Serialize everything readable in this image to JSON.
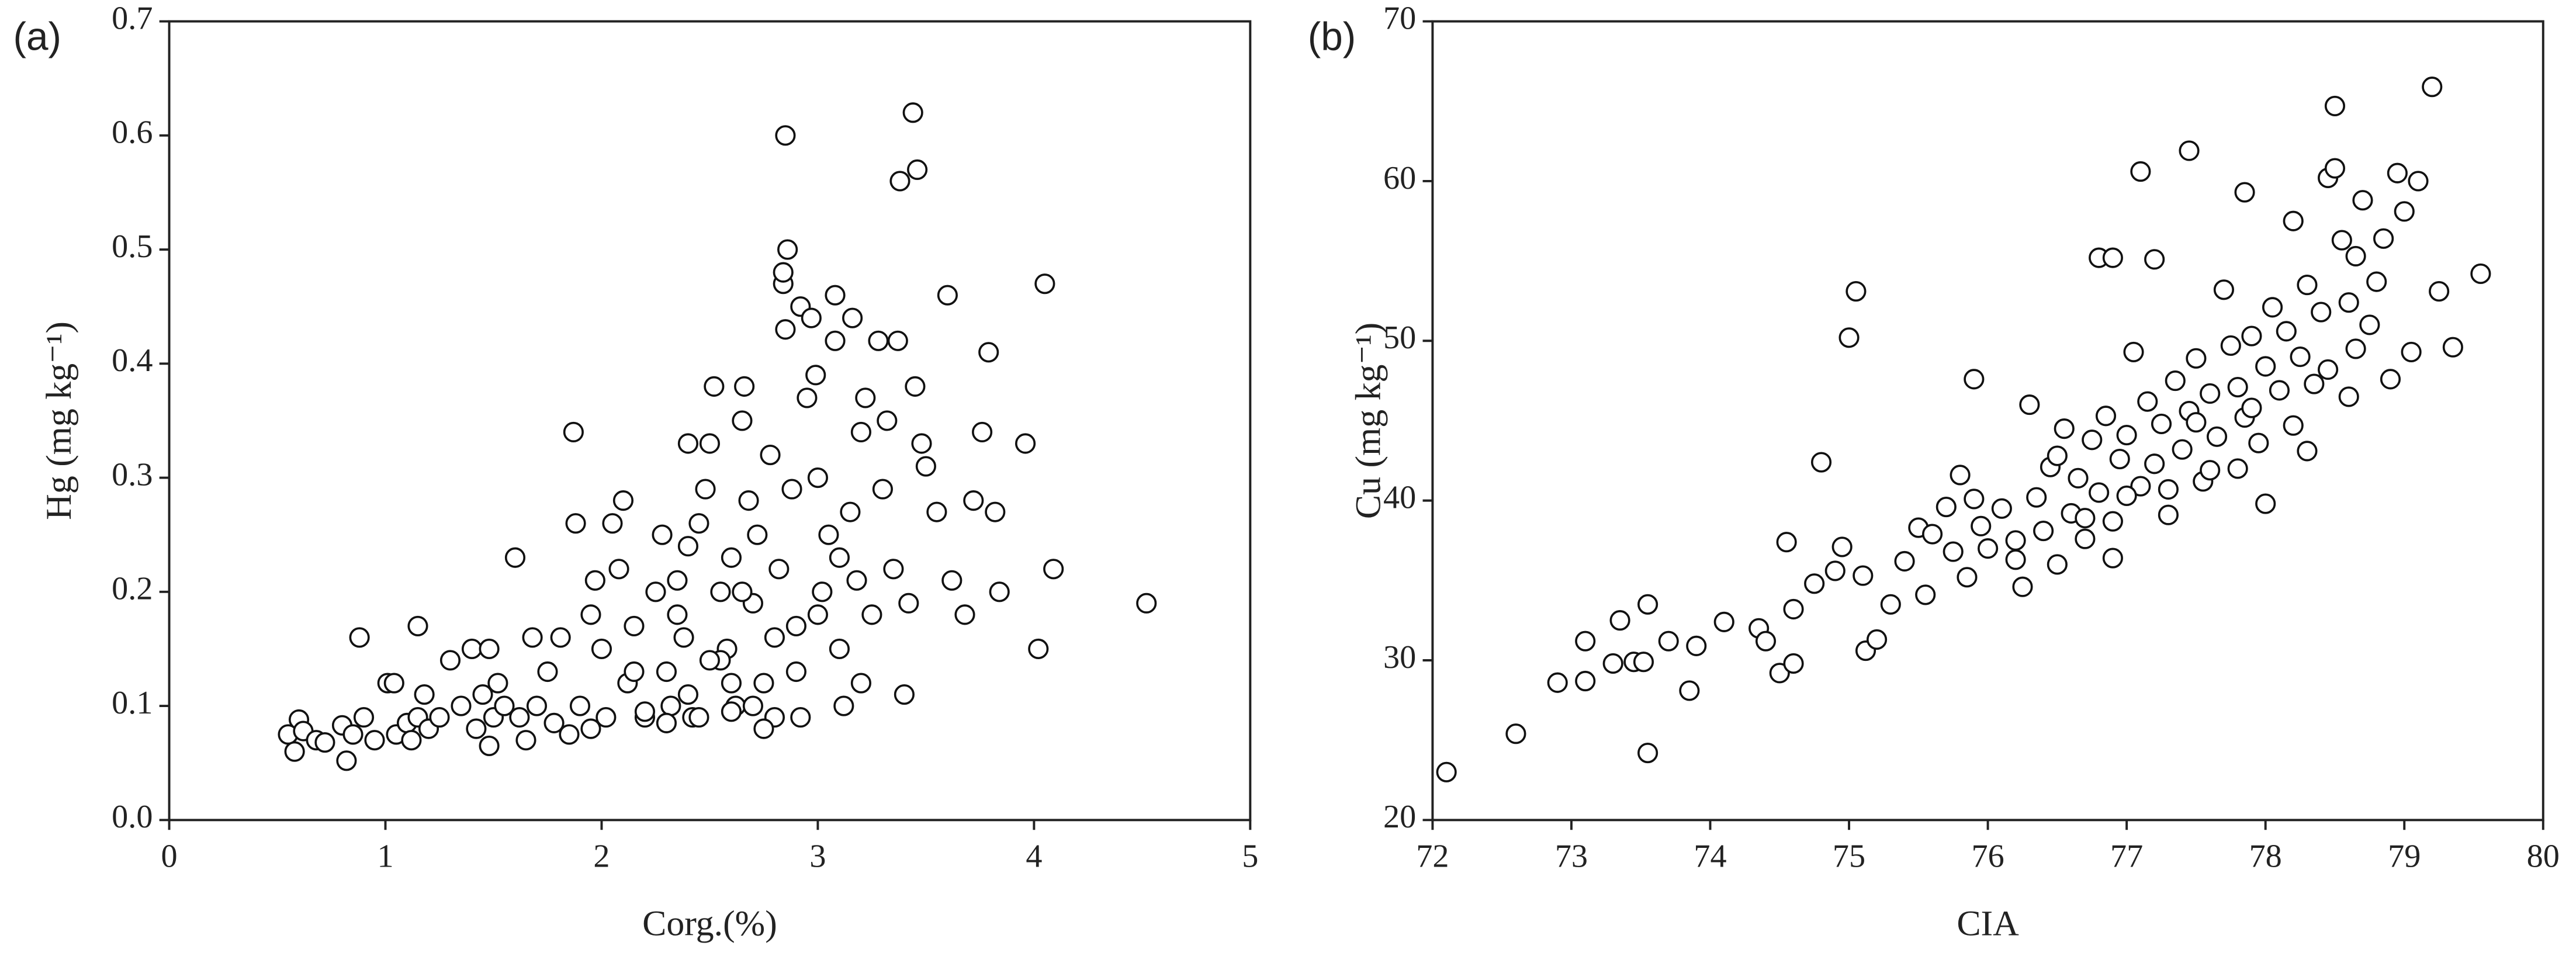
{
  "chart_data": [
    {
      "type": "scatter",
      "panel_label": "(a)",
      "x_label": "Corg.(%)",
      "y_label": "Hg (mg kg⁻¹)",
      "color": "#111111",
      "xlim": [
        0,
        5
      ],
      "ylim": [
        0,
        0.7
      ],
      "xticks": [
        0,
        1,
        2,
        3,
        4,
        5
      ],
      "yticks": [
        {
          "value": 0,
          "label": "0.0"
        },
        0.1,
        0.2,
        0.3,
        0.4,
        0.5,
        0.6,
        0.7
      ],
      "x": [
        0.55,
        0.58,
        0.6,
        0.62,
        0.68,
        0.72,
        0.8,
        0.82,
        0.85,
        0.88,
        0.9,
        0.95,
        1.01,
        1.04,
        1.05,
        1.1,
        1.12,
        1.15,
        1.15,
        1.18,
        1.2,
        1.25,
        1.3,
        1.35,
        1.4,
        1.42,
        1.45,
        1.48,
        1.48,
        1.5,
        1.52,
        1.55,
        1.6,
        1.62,
        1.65,
        1.68,
        1.7,
        1.75,
        1.78,
        1.81,
        1.85,
        1.87,
        1.88,
        1.9,
        1.95,
        1.97,
        2.0,
        2.02,
        2.05,
        2.08,
        2.1,
        2.12,
        2.15,
        2.2,
        2.25,
        2.28,
        2.3,
        2.32,
        2.35,
        2.38,
        2.4,
        2.42,
        2.45,
        2.48,
        2.5,
        2.52,
        2.55,
        2.58,
        2.6,
        2.62,
        2.65,
        2.66,
        2.68,
        2.7,
        2.72,
        2.75,
        2.78,
        2.8,
        2.82,
        2.84,
        2.84,
        2.85,
        2.85,
        2.86,
        2.88,
        2.9,
        2.92,
        2.92,
        2.95,
        2.97,
        2.99,
        3.0,
        3.02,
        3.05,
        3.08,
        3.08,
        3.1,
        3.12,
        3.15,
        3.16,
        3.18,
        3.2,
        3.22,
        3.25,
        3.28,
        3.3,
        3.32,
        3.35,
        3.37,
        3.38,
        3.4,
        3.42,
        3.44,
        3.45,
        3.46,
        3.48,
        3.5,
        3.55,
        3.6,
        3.62,
        3.68,
        3.72,
        3.76,
        3.79,
        3.82,
        3.84,
        3.96,
        4.02,
        4.05,
        4.09,
        4.52,
        2.3,
        2.45,
        2.6,
        2.7,
        2.8,
        2.55,
        2.4,
        2.2,
        1.95,
        2.75,
        2.15,
        2.35,
        2.5,
        2.65,
        3.0,
        3.1,
        3.2,
        2.9,
        2.6,
        2.4
      ],
      "values": [
        0.075,
        0.06,
        0.088,
        0.078,
        0.07,
        0.068,
        0.083,
        0.052,
        0.075,
        0.16,
        0.09,
        0.07,
        0.12,
        0.12,
        0.075,
        0.085,
        0.07,
        0.17,
        0.09,
        0.11,
        0.08,
        0.09,
        0.14,
        0.1,
        0.15,
        0.08,
        0.11,
        0.15,
        0.065,
        0.09,
        0.12,
        0.1,
        0.23,
        0.09,
        0.07,
        0.16,
        0.1,
        0.13,
        0.085,
        0.16,
        0.075,
        0.34,
        0.26,
        0.1,
        0.18,
        0.21,
        0.15,
        0.09,
        0.26,
        0.22,
        0.28,
        0.12,
        0.17,
        0.09,
        0.2,
        0.25,
        0.13,
        0.1,
        0.21,
        0.16,
        0.33,
        0.09,
        0.26,
        0.29,
        0.33,
        0.38,
        0.2,
        0.15,
        0.23,
        0.1,
        0.35,
        0.38,
        0.28,
        0.19,
        0.25,
        0.12,
        0.32,
        0.16,
        0.22,
        0.47,
        0.48,
        0.43,
        0.6,
        0.5,
        0.29,
        0.13,
        0.45,
        0.09,
        0.37,
        0.44,
        0.39,
        0.3,
        0.2,
        0.25,
        0.46,
        0.42,
        0.15,
        0.1,
        0.27,
        0.44,
        0.21,
        0.34,
        0.37,
        0.18,
        0.42,
        0.29,
        0.35,
        0.22,
        0.42,
        0.56,
        0.11,
        0.19,
        0.62,
        0.38,
        0.57,
        0.33,
        0.31,
        0.27,
        0.46,
        0.21,
        0.18,
        0.28,
        0.34,
        0.41,
        0.27,
        0.2,
        0.33,
        0.15,
        0.47,
        0.22,
        0.19,
        0.085,
        0.09,
        0.095,
        0.1,
        0.09,
        0.14,
        0.11,
        0.095,
        0.08,
        0.08,
        0.13,
        0.18,
        0.14,
        0.2,
        0.18,
        0.23,
        0.12,
        0.17,
        0.12,
        0.24
      ]
    },
    {
      "type": "scatter",
      "panel_label": "(b)",
      "x_label": "CIA",
      "y_label": "Cu (mg kg⁻¹)",
      "color": "#111111",
      "xlim": [
        72,
        80
      ],
      "ylim": [
        20,
        70
      ],
      "xticks": [
        72,
        73,
        74,
        75,
        76,
        77,
        78,
        79,
        80
      ],
      "yticks": [
        20,
        30,
        40,
        50,
        60,
        70
      ],
      "x": [
        72.1,
        72.6,
        72.9,
        73.1,
        73.1,
        73.3,
        73.35,
        73.45,
        73.52,
        73.55,
        73.55,
        73.7,
        73.85,
        73.9,
        74.1,
        74.35,
        74.4,
        74.5,
        74.55,
        74.6,
        74.6,
        74.75,
        74.8,
        74.9,
        74.95,
        75.0,
        75.05,
        75.1,
        75.12,
        75.2,
        75.3,
        75.4,
        75.5,
        75.55,
        75.6,
        75.7,
        75.75,
        75.8,
        75.85,
        75.9,
        75.95,
        76.0,
        76.1,
        76.2,
        76.25,
        76.3,
        76.35,
        76.4,
        76.45,
        76.5,
        76.55,
        76.6,
        76.65,
        76.7,
        76.75,
        76.8,
        76.8,
        76.85,
        76.9,
        76.9,
        76.95,
        77.0,
        77.05,
        77.1,
        77.1,
        77.15,
        77.2,
        77.2,
        77.25,
        77.3,
        77.35,
        77.4,
        77.45,
        77.45,
        77.5,
        77.55,
        77.6,
        77.65,
        77.7,
        77.75,
        77.8,
        77.85,
        77.85,
        77.9,
        77.95,
        78.0,
        78.05,
        78.1,
        78.15,
        78.2,
        78.2,
        78.25,
        78.3,
        78.35,
        78.4,
        78.45,
        78.45,
        78.5,
        78.5,
        78.55,
        78.6,
        78.65,
        78.65,
        78.7,
        78.75,
        78.8,
        78.85,
        78.9,
        78.95,
        79.0,
        79.05,
        79.1,
        79.2,
        79.25,
        79.35,
        79.55,
        75.9,
        76.5,
        77.0,
        77.5,
        78.0,
        77.8,
        76.2,
        76.7,
        77.3,
        77.9,
        78.3,
        78.6,
        77.6,
        76.9
      ],
      "values": [
        23,
        25.4,
        28.6,
        31.2,
        28.7,
        29.8,
        32.5,
        29.9,
        29.9,
        24.2,
        33.5,
        31.2,
        28.1,
        30.9,
        32.4,
        32.0,
        31.2,
        29.2,
        37.4,
        29.8,
        33.2,
        34.8,
        42.4,
        35.6,
        37.1,
        50.2,
        53.1,
        35.3,
        30.6,
        31.3,
        33.5,
        36.2,
        38.3,
        34.1,
        37.9,
        39.6,
        36.8,
        41.6,
        35.2,
        40.1,
        38.4,
        37.0,
        39.5,
        36.3,
        34.6,
        46.0,
        40.2,
        38.1,
        42.1,
        36.0,
        44.5,
        39.2,
        41.4,
        37.6,
        43.8,
        55.2,
        40.5,
        45.3,
        55.2,
        38.7,
        42.6,
        44.1,
        49.3,
        60.6,
        40.9,
        46.2,
        55.1,
        42.3,
        44.8,
        39.1,
        47.5,
        43.2,
        61.9,
        45.6,
        48.9,
        41.2,
        46.7,
        44.0,
        53.2,
        49.7,
        47.1,
        59.3,
        45.2,
        50.3,
        43.6,
        48.4,
        52.1,
        46.9,
        50.6,
        57.5,
        44.7,
        49.0,
        53.5,
        47.3,
        51.8,
        60.2,
        48.2,
        64.7,
        60.8,
        56.3,
        52.4,
        55.3,
        49.5,
        58.8,
        51.0,
        53.7,
        56.4,
        47.6,
        60.5,
        58.1,
        49.3,
        60.0,
        65.9,
        53.1,
        49.6,
        54.2,
        47.6,
        42.8,
        40.3,
        44.9,
        39.8,
        42.0,
        37.5,
        38.9,
        40.7,
        45.8,
        43.1,
        46.5,
        41.9,
        36.4
      ]
    }
  ]
}
